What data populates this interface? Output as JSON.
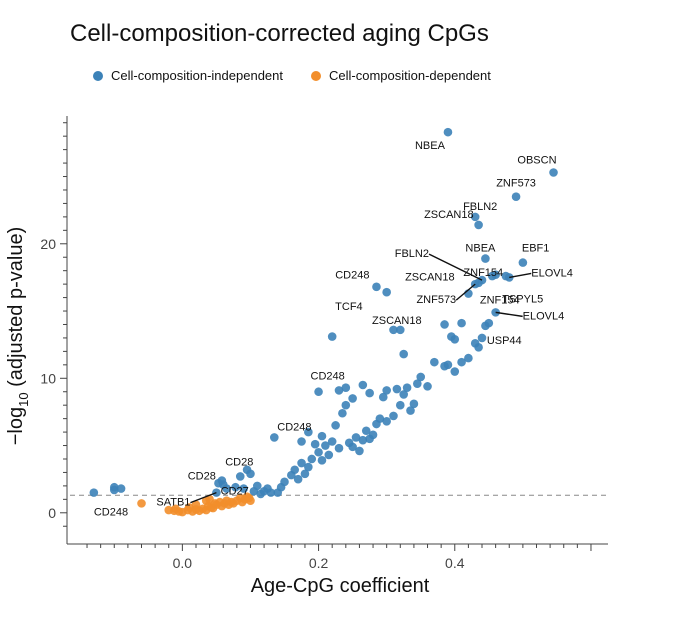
{
  "colors": {
    "independent": "#3c82b8",
    "dependent": "#f28e2b",
    "axis": "#444444",
    "threshold": "#888888"
  },
  "chart_data": {
    "type": "scatter",
    "title": "Cell-composition-corrected aging CpGs",
    "xlabel": "Age-CpG coefficient",
    "ylabel": "−log10 (adjusted p-value)",
    "ylabel_base": "−log",
    "ylabel_sub": "10",
    "ylabel_rest": " (adjusted p-value)",
    "xlim": [
      -0.165,
      0.625
    ],
    "ylim": [
      -1.8,
      29.5
    ],
    "xticks": [
      {
        "value": 0.0,
        "label": "0.0"
      },
      {
        "value": 0.2,
        "label": "0.2"
      },
      {
        "value": 0.4,
        "label": "0.4"
      }
    ],
    "yticks": [
      {
        "value": 0,
        "label": "0"
      },
      {
        "value": 10,
        "label": "10"
      },
      {
        "value": 20,
        "label": "20"
      }
    ],
    "threshold_y": 1.3,
    "legend": {
      "position": "top-left"
    },
    "grid": false,
    "series": [
      {
        "name": "Cell-composition-independent",
        "color_key": "independent",
        "points": [
          [
            -0.13,
            1.5
          ],
          [
            -0.1,
            1.9
          ],
          [
            -0.1,
            1.7
          ],
          [
            -0.09,
            1.8
          ],
          [
            0.05,
            1.5
          ],
          [
            0.053,
            2.2
          ],
          [
            0.058,
            2.4
          ],
          [
            0.06,
            2.1
          ],
          [
            0.065,
            1.8
          ],
          [
            0.078,
            1.9
          ],
          [
            0.085,
            2.7
          ],
          [
            0.09,
            1.8
          ],
          [
            0.095,
            3.2
          ],
          [
            0.1,
            2.9
          ],
          [
            0.105,
            1.6
          ],
          [
            0.11,
            2.0
          ],
          [
            0.115,
            1.4
          ],
          [
            0.12,
            1.6
          ],
          [
            0.125,
            1.8
          ],
          [
            0.13,
            1.5
          ],
          [
            0.135,
            5.6
          ],
          [
            0.14,
            1.5
          ],
          [
            0.145,
            1.9
          ],
          [
            0.15,
            2.3
          ],
          [
            0.16,
            2.8
          ],
          [
            0.165,
            3.2
          ],
          [
            0.17,
            2.5
          ],
          [
            0.175,
            3.7
          ],
          [
            0.18,
            2.9
          ],
          [
            0.185,
            3.4
          ],
          [
            0.19,
            4.0
          ],
          [
            0.2,
            4.5
          ],
          [
            0.205,
            3.9
          ],
          [
            0.21,
            5.0
          ],
          [
            0.215,
            4.3
          ],
          [
            0.22,
            5.3
          ],
          [
            0.225,
            6.5
          ],
          [
            0.23,
            4.8
          ],
          [
            0.235,
            7.4
          ],
          [
            0.24,
            9.3
          ],
          [
            0.245,
            5.2
          ],
          [
            0.25,
            4.9
          ],
          [
            0.255,
            5.6
          ],
          [
            0.26,
            4.6
          ],
          [
            0.265,
            5.4
          ],
          [
            0.27,
            6.1
          ],
          [
            0.275,
            5.5
          ],
          [
            0.28,
            5.8
          ],
          [
            0.285,
            6.6
          ],
          [
            0.29,
            7.0
          ],
          [
            0.295,
            8.6
          ],
          [
            0.3,
            9.1
          ],
          [
            0.3,
            6.8
          ],
          [
            0.31,
            7.2
          ],
          [
            0.32,
            8.0
          ],
          [
            0.325,
            8.8
          ],
          [
            0.33,
            9.3
          ],
          [
            0.34,
            8.1
          ],
          [
            0.35,
            10.1
          ],
          [
            0.385,
            10.9
          ],
          [
            0.39,
            11.0
          ],
          [
            0.4,
            10.5
          ],
          [
            0.41,
            11.2
          ],
          [
            0.42,
            11.5
          ],
          [
            0.43,
            12.6
          ],
          [
            0.435,
            12.3
          ],
          [
            0.44,
            13.0
          ],
          [
            0.445,
            13.9
          ],
          [
            0.45,
            14.1
          ],
          [
            0.46,
            14.9
          ],
          [
            0.325,
            11.8
          ],
          [
            0.31,
            13.6
          ],
          [
            0.32,
            13.6
          ],
          [
            0.3,
            16.4
          ],
          [
            0.285,
            16.8
          ],
          [
            0.22,
            13.1
          ],
          [
            0.23,
            9.1
          ],
          [
            0.24,
            8.0
          ],
          [
            0.25,
            8.5
          ],
          [
            0.265,
            9.5
          ],
          [
            0.275,
            8.9
          ],
          [
            0.2,
            9.0
          ],
          [
            0.175,
            5.3
          ],
          [
            0.185,
            6.0
          ],
          [
            0.195,
            5.1
          ],
          [
            0.205,
            5.7
          ],
          [
            0.315,
            9.2
          ],
          [
            0.335,
            7.6
          ],
          [
            0.345,
            9.6
          ],
          [
            0.36,
            9.4
          ],
          [
            0.37,
            11.2
          ],
          [
            0.385,
            14.0
          ],
          [
            0.395,
            13.1
          ],
          [
            0.4,
            12.9
          ],
          [
            0.41,
            14.1
          ],
          [
            0.42,
            16.3
          ],
          [
            0.43,
            17.0
          ],
          [
            0.435,
            17.1
          ],
          [
            0.44,
            17.3
          ],
          [
            0.445,
            18.9
          ],
          [
            0.455,
            17.6
          ],
          [
            0.46,
            17.7
          ],
          [
            0.475,
            17.6
          ],
          [
            0.48,
            17.5
          ],
          [
            0.5,
            18.6
          ],
          [
            0.39,
            28.3
          ],
          [
            0.43,
            22.0
          ],
          [
            0.435,
            21.4
          ],
          [
            0.49,
            23.5
          ],
          [
            0.545,
            25.3
          ]
        ]
      },
      {
        "name": "Cell-composition-dependent",
        "color_key": "dependent",
        "points": [
          [
            -0.06,
            0.7
          ],
          [
            -0.02,
            0.2
          ],
          [
            -0.012,
            0.15
          ],
          [
            -0.005,
            0.1
          ],
          [
            0.0,
            0.05
          ],
          [
            0.008,
            0.2
          ],
          [
            0.015,
            0.1
          ],
          [
            0.02,
            0.25
          ],
          [
            0.025,
            0.15
          ],
          [
            0.03,
            0.3
          ],
          [
            0.035,
            0.2
          ],
          [
            0.038,
            0.5
          ],
          [
            0.042,
            0.4
          ],
          [
            0.045,
            0.35
          ],
          [
            0.048,
            0.7
          ],
          [
            0.05,
            0.6
          ],
          [
            0.055,
            0.8
          ],
          [
            0.058,
            0.5
          ],
          [
            0.062,
            0.7
          ],
          [
            0.065,
            0.9
          ],
          [
            0.068,
            0.6
          ],
          [
            0.072,
            0.8
          ],
          [
            0.075,
            0.7
          ],
          [
            0.08,
            0.9
          ],
          [
            0.085,
            1.1
          ],
          [
            0.088,
            0.8
          ],
          [
            0.092,
            1.0
          ],
          [
            0.095,
            1.2
          ],
          [
            0.098,
            1.1
          ],
          [
            0.1,
            0.9
          ],
          [
            0.035,
            0.9
          ],
          [
            0.04,
            1.0
          ],
          [
            0.02,
            0.6
          ],
          [
            0.01,
            0.4
          ],
          [
            -0.01,
            0.3
          ]
        ]
      }
    ],
    "annotations": [
      {
        "text": "NBEA",
        "x": 0.39,
        "y": 28.3,
        "ha": "end",
        "dx": -3,
        "dy": 14
      },
      {
        "text": "OBSCN",
        "x": 0.545,
        "y": 25.3,
        "ha": "end",
        "dx": 3,
        "dy": -12
      },
      {
        "text": "ZNF573",
        "x": 0.49,
        "y": 23.5,
        "ha": "middle",
        "dx": 0,
        "dy": -13
      },
      {
        "text": "FBLN2",
        "x": 0.43,
        "y": 22.0,
        "ha": "middle",
        "dx": 5,
        "dy": -10
      },
      {
        "text": "ZSCAN18",
        "x": 0.435,
        "y": 21.4,
        "ha": "end",
        "dx": -5,
        "dy": -10
      },
      {
        "text": "NBEA",
        "x": 0.445,
        "y": 18.9,
        "ha": "middle",
        "dx": -5,
        "dy": -10
      },
      {
        "text": "EBF1",
        "x": 0.5,
        "y": 18.6,
        "ha": "start",
        "dx": -1,
        "dy": -14
      },
      {
        "text": "ZNF154",
        "x": 0.445,
        "y": 17.6,
        "ha": "start",
        "dx": -22,
        "dy": -3
      },
      {
        "text": "ELOVL4",
        "x": 0.48,
        "y": 17.5,
        "ha": "start",
        "dx": 22,
        "dy": -4,
        "line": true
      },
      {
        "text": "ZSCAN18",
        "x": 0.435,
        "y": 17.1,
        "ha": "end",
        "dx": -24,
        "dy": -5
      },
      {
        "text": "TSPYL5",
        "x": 0.48,
        "y": 17.5,
        "ha": "start",
        "dx": -7,
        "dy": 22
      },
      {
        "text": "ZNF573",
        "x": 0.43,
        "y": 17.0,
        "ha": "end",
        "dx": -19,
        "dy": 16,
        "line": true
      },
      {
        "text": "FBLN2",
        "x": 0.44,
        "y": 17.3,
        "ha": "end",
        "dx": -53,
        "dy": -26,
        "line": true
      },
      {
        "text": "ZNF154",
        "x": 0.46,
        "y": 14.9,
        "ha": "end",
        "dx": 24,
        "dy": -12
      },
      {
        "text": "ELOVL4",
        "x": 0.46,
        "y": 14.9,
        "ha": "start",
        "dx": 27,
        "dy": 4,
        "line": true
      },
      {
        "text": "USP44",
        "x": 0.45,
        "y": 14.1,
        "ha": "start",
        "dx": -2,
        "dy": 18
      },
      {
        "text": "ZSCAN18",
        "x": 0.41,
        "y": 14.1,
        "ha": "end",
        "dx": -40,
        "dy": -2
      },
      {
        "text": "CD248",
        "x": 0.285,
        "y": 16.8,
        "ha": "end",
        "dx": -7,
        "dy": -11
      },
      {
        "text": "TCF4",
        "x": 0.3,
        "y": 16.4,
        "ha": "end",
        "dx": -24,
        "dy": 15
      },
      {
        "text": "CD248",
        "x": 0.24,
        "y": 9.3,
        "ha": "end",
        "dx": -1,
        "dy": -11
      },
      {
        "text": "CD248",
        "x": 0.135,
        "y": 5.6,
        "ha": "start",
        "dx": 3,
        "dy": -10
      },
      {
        "text": "CD28",
        "x": 0.085,
        "y": 2.7,
        "ha": "middle",
        "dx": -1,
        "dy": -14
      },
      {
        "text": "CD28",
        "x": 0.058,
        "y": 2.4,
        "ha": "end",
        "dx": -6,
        "dy": -4
      },
      {
        "text": "CD27",
        "x": 0.065,
        "y": 1.8,
        "ha": "start",
        "dx": -6,
        "dy": 3
      },
      {
        "text": "SATB1",
        "x": 0.05,
        "y": 1.5,
        "ha": "end",
        "dx": -26,
        "dy": 10,
        "line": true
      },
      {
        "text": "CD248",
        "x": -0.13,
        "y": 1.5,
        "ha": "start",
        "dx": 0,
        "dy": 20
      }
    ]
  }
}
